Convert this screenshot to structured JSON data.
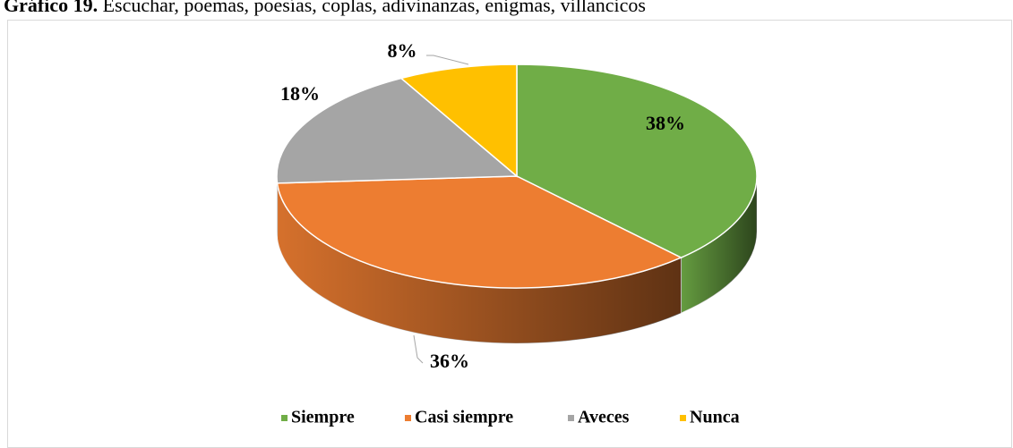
{
  "chart_data": {
    "type": "pie3d",
    "title": "Gráfico 19.",
    "subtitle": "Escuchar, poemas, poesías, coplas, adivinanzas, enigmas, villancicos",
    "categories": [
      "Siempre",
      "Casi siempre",
      "Aveces",
      "Nunca"
    ],
    "values": [
      38,
      36,
      18,
      8
    ],
    "value_labels": [
      "38%",
      "36%",
      "18%",
      "8%"
    ],
    "colors": [
      "#70ad47",
      "#ed7d31",
      "#a5a5a5",
      "#ffc000"
    ],
    "legend": "bottom"
  }
}
